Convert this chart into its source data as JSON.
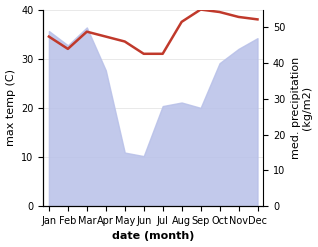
{
  "months": [
    "Jan",
    "Feb",
    "Mar",
    "Apr",
    "May",
    "Jun",
    "Jul",
    "Aug",
    "Sep",
    "Oct",
    "Nov",
    "Dec"
  ],
  "month_indices": [
    0,
    1,
    2,
    3,
    4,
    5,
    6,
    7,
    8,
    9,
    10,
    11
  ],
  "temperature": [
    34.5,
    32.0,
    35.5,
    34.5,
    33.5,
    31.0,
    31.0,
    37.5,
    40.0,
    39.5,
    38.5,
    38.0
  ],
  "precipitation": [
    49.0,
    45.0,
    50.0,
    38.0,
    15.0,
    14.0,
    28.0,
    29.0,
    27.5,
    40.0,
    44.0,
    47.0
  ],
  "temp_ylim": [
    0,
    40
  ],
  "precip_ylim": [
    0,
    55
  ],
  "temp_color": "#c0392b",
  "precip_fill_color": "#b8c0e8",
  "xlabel": "date (month)",
  "ylabel_left": "max temp (C)",
  "ylabel_right": "med. precipitation\n(kg/m2)",
  "bg_color": "#ffffff",
  "temp_linewidth": 1.8,
  "tick_fontsize": 7,
  "label_fontsize": 8,
  "ylabel_fontsize": 8
}
